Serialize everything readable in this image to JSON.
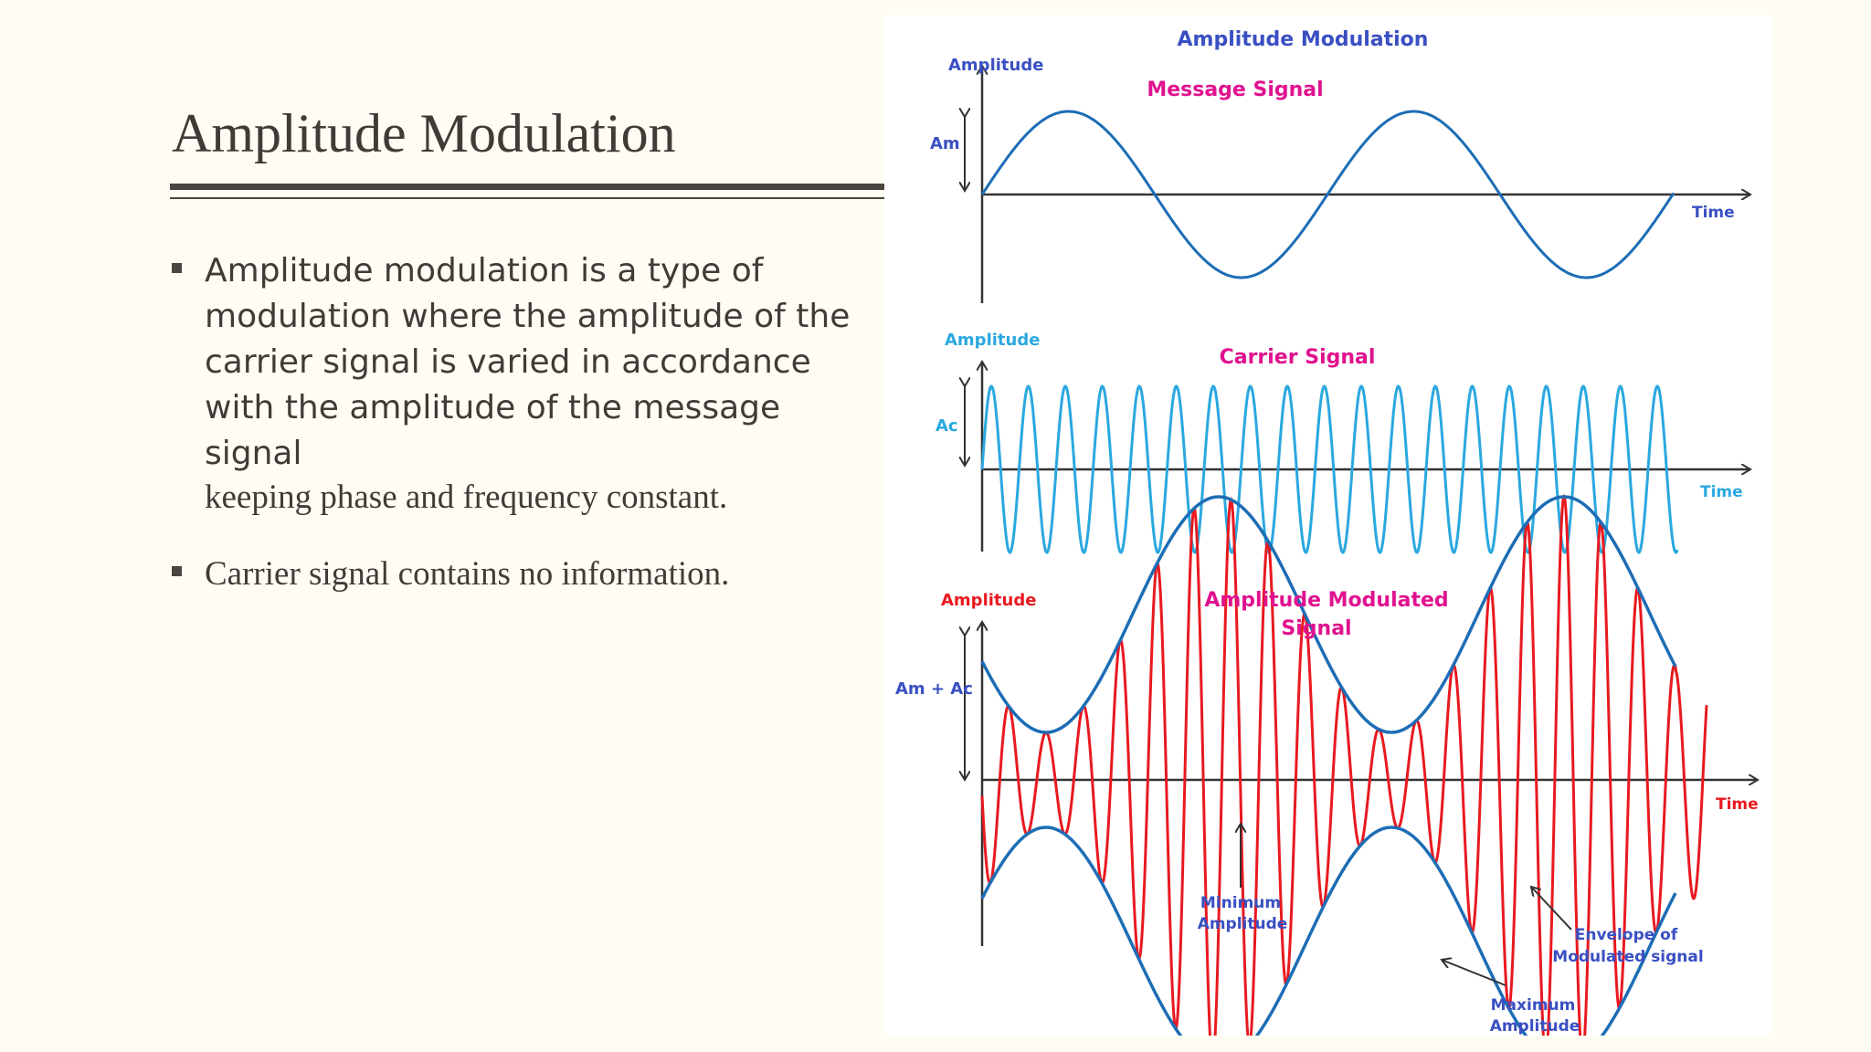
{
  "slide": {
    "title": "Amplitude Modulation",
    "bullets": [
      {
        "text_sans": "Amplitude modulation is a type of modulation where the amplitude of the carrier signal is varied in accordance with the amplitude of the message signal",
        "text_serif": "keeping phase and frequency constant."
      },
      {
        "text": "Carrier signal contains no information."
      }
    ]
  },
  "figure": {
    "title": "Amplitude Modulation",
    "colors": {
      "label": "#3a4fc2",
      "heading": "#e0128f",
      "message": "#1d6db5",
      "carrier": "#2aa8df",
      "modulated": "#e8191f",
      "envelope": "#1d6db5",
      "axis": "#333333"
    },
    "panel1": {
      "heading": "Message Signal",
      "y_label": "Amplitude",
      "x_label": "Time",
      "amp_label": "Am"
    },
    "panel2": {
      "heading": "Carrier Signal",
      "y_label": "Amplitude",
      "x_label": "Time",
      "amp_label": "Ac"
    },
    "panel3": {
      "heading_line1": "Amplitude Modulated",
      "heading_line2": "Signal",
      "y_label": "Amplitude",
      "x_label": "Time",
      "amp_label": "Am + Ac",
      "annotations": {
        "min_line1": "Minimum",
        "min_line2": "Amplitude",
        "env_line1": "Envelope of",
        "env_line2": "Modulated signal",
        "max_line1": "Maximum",
        "max_line2": "Amplitude"
      }
    }
  }
}
